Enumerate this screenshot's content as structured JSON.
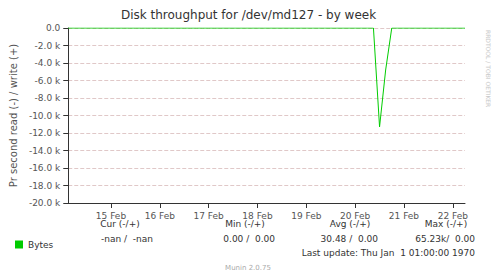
{
  "chart_data": {
    "type": "line",
    "title": "Disk throughput for /dev/md127 - by week",
    "y_label": "Pr second read (-) / write (+)",
    "categories": [
      null,
      null,
      null,
      null,
      null,
      null,
      null,
      "15 Feb",
      null,
      null,
      null,
      null,
      null,
      null,
      null,
      "16 Feb",
      null,
      null,
      null,
      null,
      null,
      null,
      null,
      "17 Feb",
      null,
      null,
      null,
      null,
      null,
      null,
      null,
      "18 Feb",
      null,
      null,
      null,
      null,
      null,
      null,
      null,
      "19 Feb",
      null,
      null,
      null,
      null,
      null,
      null,
      null,
      "20 Feb",
      null,
      null,
      null,
      null,
      null,
      null,
      null,
      "21 Feb",
      null,
      null,
      null,
      null,
      null,
      null,
      null,
      "22 Feb",
      null,
      null
    ],
    "series": [
      {
        "name": "Bytes",
        "color": "#00cc00",
        "values": [
          0,
          0,
          0,
          0,
          0,
          0,
          0,
          0,
          0,
          0,
          0,
          0,
          0,
          0,
          0,
          0,
          0,
          0,
          0,
          0,
          0,
          0,
          0,
          0,
          0,
          0,
          0,
          0,
          0,
          0,
          0,
          0,
          0,
          0,
          0,
          0,
          0,
          0,
          0,
          0,
          0,
          0,
          0,
          0,
          0,
          0,
          0,
          0,
          0,
          0,
          0,
          -11300,
          -4800,
          0,
          0,
          0,
          0,
          0,
          0,
          0,
          0,
          0,
          0,
          0,
          0,
          0
        ]
      }
    ],
    "ylim": [
      -20000,
      0
    ],
    "yticks": [
      {
        "value": 0,
        "label": "0.0"
      },
      {
        "value": -2000,
        "label": "-2.0 k"
      },
      {
        "value": -4000,
        "label": "-4.0 k"
      },
      {
        "value": -6000,
        "label": "-6.0 k"
      },
      {
        "value": -8000,
        "label": "-8.0 k"
      },
      {
        "value": -10000,
        "label": "-10.0 k"
      },
      {
        "value": -12000,
        "label": "-12.0 k"
      },
      {
        "value": -14000,
        "label": "-14.0 k"
      },
      {
        "value": -16000,
        "label": "-16.0 k"
      },
      {
        "value": -18000,
        "label": "-18.0 k"
      },
      {
        "value": -20000,
        "label": "-20.0 k"
      }
    ],
    "grid": true,
    "legend": "bottom-left",
    "summary": {
      "headers": [
        "Cur (-/+)",
        "Min (-/+)",
        "Avg (-/+)",
        "Max (-/+)"
      ],
      "cells": [
        "-nan /  -nan",
        "0.00 /  0.00",
        "30.48 /  0.00",
        "65.23k/  0.00"
      ]
    },
    "last_update": "Last update: Thu Jan  1 01:00:00 1970",
    "footer": "Munin 2.0.75",
    "watermark": "RRDTOOL / TOBI OETIKER"
  }
}
